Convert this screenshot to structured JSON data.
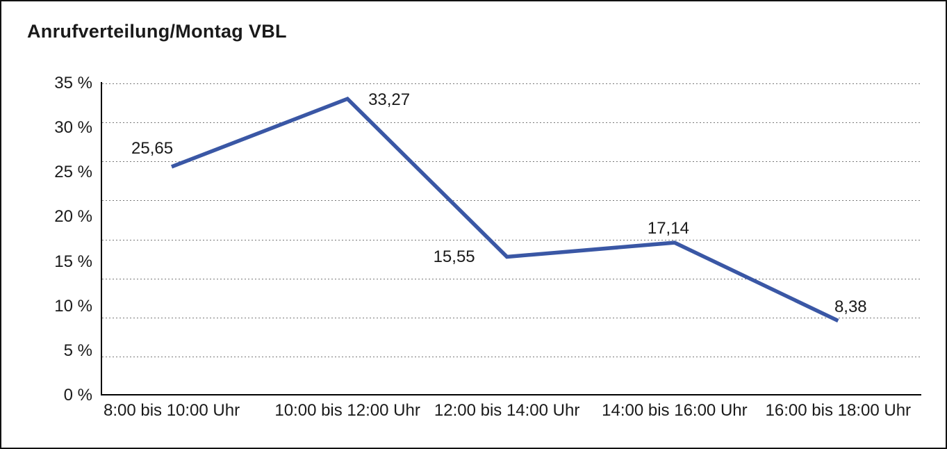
{
  "title": "Anrufverteilung/Montag VBL",
  "chart_data": {
    "type": "line",
    "title": "Anrufverteilung/Montag VBL",
    "categories": [
      "8:00 bis 10:00 Uhr",
      "10:00 bis 12:00 Uhr",
      "12:00 bis 14:00 Uhr",
      "14:00 bis 16:00 Uhr",
      "16:00 bis 18:00 Uhr"
    ],
    "series": [
      {
        "name": "Anrufverteilung Montag VBL",
        "values": [
          25.65,
          33.27,
          15.55,
          17.14,
          8.38
        ]
      }
    ],
    "value_labels": [
      "25,65",
      "33,27",
      "15,55",
      "17,14",
      "8,38"
    ],
    "y_tick_labels": [
      "35 %",
      "30 %",
      "25 %",
      "20 %",
      "15 %",
      "10 %",
      "5 %",
      "0 %"
    ],
    "ylim": [
      0,
      35
    ],
    "xlabel": "",
    "ylabel": "",
    "legend": "none",
    "grid": "horizontal-dotted",
    "gridline_count": 8,
    "line_color": "#3A57A5",
    "line_width": 5.5,
    "axis_color": "#000000",
    "grid_color": "#777777",
    "text_color": "#1a1a1a",
    "background": "#ffffff"
  }
}
